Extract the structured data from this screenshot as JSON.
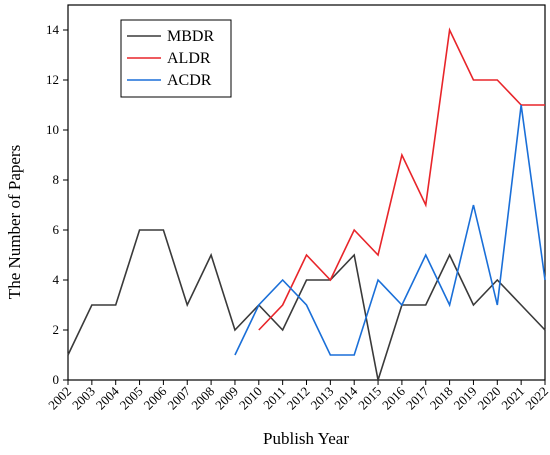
{
  "chart_data": {
    "type": "line",
    "title": "",
    "xlabel": "Publish Year",
    "ylabel": "The Number of Papers",
    "x": [
      "2002",
      "2003",
      "2004",
      "2005",
      "2006",
      "2007",
      "2008",
      "2009",
      "2010",
      "2011",
      "2012",
      "2013",
      "2014",
      "2015",
      "2016",
      "2017",
      "2018",
      "2019",
      "2020",
      "2021",
      "2022"
    ],
    "xlim": [
      2002,
      2022
    ],
    "ylim": [
      0,
      15
    ],
    "yticks": [
      0,
      2,
      4,
      6,
      8,
      10,
      12,
      14
    ],
    "grid": false,
    "legend_position": "top-left",
    "series": [
      {
        "name": "MBDR",
        "color": "#3a3a3a",
        "points": [
          [
            2002,
            1
          ],
          [
            2003,
            3
          ],
          [
            2004,
            3
          ],
          [
            2005,
            6
          ],
          [
            2006,
            6
          ],
          [
            2007,
            3
          ],
          [
            2008,
            5
          ],
          [
            2009,
            2
          ],
          [
            2010,
            3
          ],
          [
            2011,
            2
          ],
          [
            2012,
            4
          ],
          [
            2013,
            4
          ],
          [
            2014,
            5
          ],
          [
            2015,
            0
          ],
          [
            2016,
            3
          ],
          [
            2017,
            3
          ],
          [
            2018,
            5
          ],
          [
            2019,
            3
          ],
          [
            2020,
            4
          ],
          [
            2021,
            3
          ],
          [
            2022,
            2
          ]
        ]
      },
      {
        "name": "ALDR",
        "color": "#e8252a",
        "points": [
          [
            2010,
            2
          ],
          [
            2011,
            3
          ],
          [
            2012,
            5
          ],
          [
            2013,
            4
          ],
          [
            2014,
            6
          ],
          [
            2015,
            5
          ],
          [
            2016,
            9
          ],
          [
            2017,
            7
          ],
          [
            2018,
            14
          ],
          [
            2019,
            12
          ],
          [
            2020,
            12
          ],
          [
            2021,
            11
          ],
          [
            2022,
            11
          ]
        ]
      },
      {
        "name": "ACDR",
        "color": "#1a6fd8",
        "points": [
          [
            2009,
            1
          ],
          [
            2010,
            3
          ],
          [
            2011,
            4
          ],
          [
            2012,
            3
          ],
          [
            2013,
            1
          ],
          [
            2014,
            1
          ],
          [
            2015,
            4
          ],
          [
            2016,
            3
          ],
          [
            2017,
            5
          ],
          [
            2018,
            3
          ],
          [
            2019,
            7
          ],
          [
            2020,
            3
          ],
          [
            2021,
            11
          ],
          [
            2022,
            4
          ]
        ]
      }
    ]
  }
}
